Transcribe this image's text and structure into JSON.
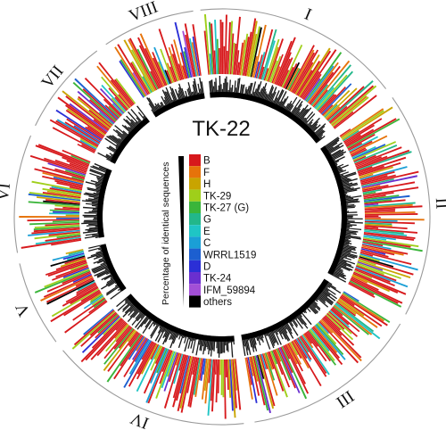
{
  "figure": {
    "title": "TK-22",
    "legend_axis_label": "Percentage of identical sequences"
  },
  "chromosomes": [
    {
      "label": "I",
      "start_deg": -6,
      "end_deg": 52
    },
    {
      "label": "II",
      "start_deg": 55,
      "end_deg": 118
    },
    {
      "label": "III",
      "start_deg": 121,
      "end_deg": 171
    },
    {
      "label": "IV",
      "start_deg": 174,
      "end_deg": 230
    },
    {
      "label": "V",
      "start_deg": 233,
      "end_deg": 257
    },
    {
      "label": "VI",
      "start_deg": 260,
      "end_deg": 293
    },
    {
      "label": "VII",
      "start_deg": 296,
      "end_deg": 323
    },
    {
      "label": "VIII",
      "start_deg": 326,
      "end_deg": 352
    }
  ],
  "strains": [
    {
      "name": "B",
      "color": "#d7191c"
    },
    {
      "name": "F",
      "color": "#e6730a"
    },
    {
      "name": "H",
      "color": "#c9a400"
    },
    {
      "name": "TK-29",
      "color": "#9fcf1a"
    },
    {
      "name": "TK-27 (G)",
      "color": "#3ab53a"
    },
    {
      "name": "G",
      "color": "#22b78a"
    },
    {
      "name": "E",
      "color": "#1fc5c5"
    },
    {
      "name": "C",
      "color": "#1a9fd6"
    },
    {
      "name": "WRRL1519",
      "color": "#1c5fd0"
    },
    {
      "name": "D",
      "color": "#2b2fd6"
    },
    {
      "name": "TK-24",
      "color": "#6a2fcf"
    },
    {
      "name": "IFM_59894",
      "color": "#a24fd6"
    },
    {
      "name": "others",
      "color": "#000000"
    }
  ]
}
